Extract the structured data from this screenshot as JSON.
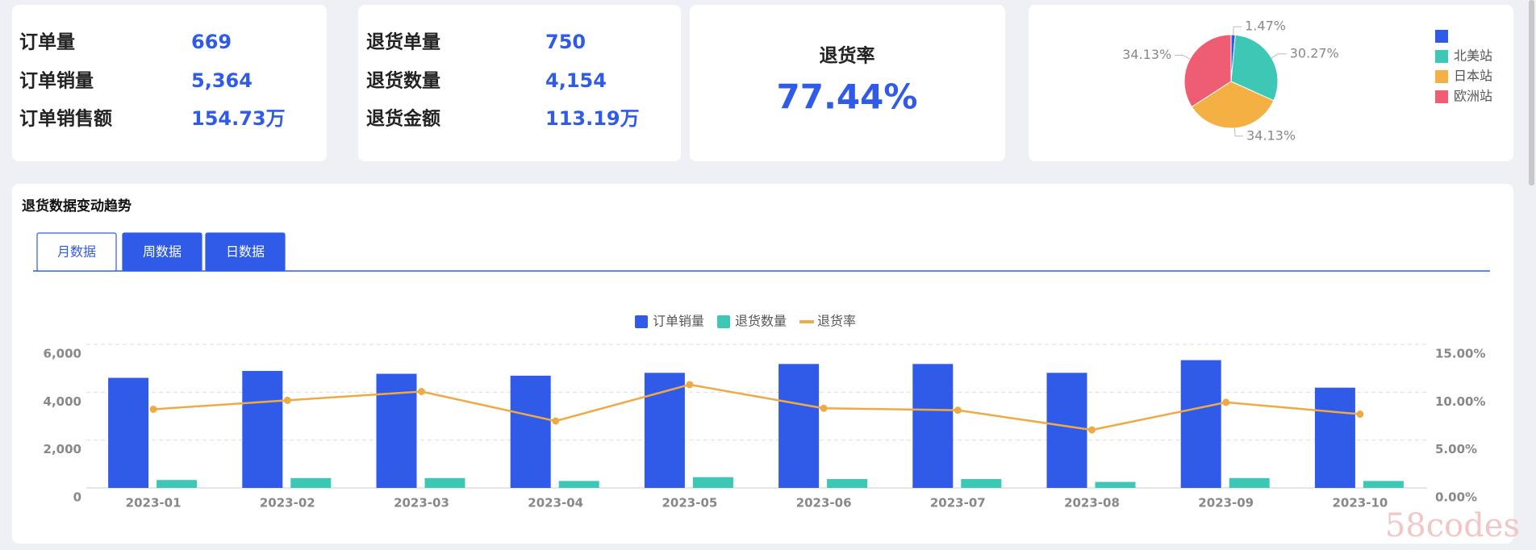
{
  "kpi_cards": [
    {
      "rows": [
        {
          "label": "订单量",
          "value": "669"
        },
        {
          "label": "订单销量",
          "value": "5,364"
        },
        {
          "label": "订单销售额",
          "value": "154.73万"
        }
      ]
    },
    {
      "rows": [
        {
          "label": "退货单量",
          "value": "750"
        },
        {
          "label": "退货数量",
          "value": "4,154"
        },
        {
          "label": "退货金额",
          "value": "113.19万"
        }
      ]
    }
  ],
  "rate_card": {
    "label": "退货率",
    "value": "77.44%"
  },
  "tabs": [
    "月数据",
    "周数据",
    "日数据"
  ],
  "watermark": "58codes",
  "chart_data": [
    {
      "type": "pie",
      "categories": [
        null,
        "北美站",
        "日本站",
        "欧洲站"
      ],
      "values": [
        1.47,
        30.27,
        34.13,
        34.13
      ],
      "value_labels": [
        "1.47%",
        "30.27%",
        "34.13%",
        "34.13%"
      ],
      "colors": [
        "#2f5be8",
        "#3cc8b4",
        "#f4b042",
        "#ef5d72"
      ],
      "legend": "right"
    },
    {
      "type": "combo",
      "title": "退货数据变动趋势",
      "categories": [
        "2023-01",
        "2023-02",
        "2023-03",
        "2023-04",
        "2023-05",
        "2023-06",
        "2023-07",
        "2023-08",
        "2023-09",
        "2023-10"
      ],
      "series": [
        {
          "name": "订单销量",
          "type": "bar",
          "color": "#2f5be8",
          "values": [
            4600,
            4890,
            4770,
            4690,
            4810,
            5180,
            5180,
            4810,
            5340,
            4190
          ]
        },
        {
          "name": "退货数量",
          "type": "bar",
          "color": "#3cc8b4",
          "values": [
            330,
            410,
            410,
            290,
            450,
            370,
            370,
            250,
            410,
            290
          ]
        },
        {
          "name": "退货率",
          "type": "line",
          "color": "#eeaa45",
          "axis": "y2",
          "values": [
            8.22,
            9.15,
            10.07,
            6.99,
            10.79,
            8.32,
            8.12,
            6.06,
            8.94,
            7.71
          ]
        }
      ],
      "ylim": [
        0,
        6000
      ],
      "yticks": [
        0,
        {
          "value": 2000,
          "label": "2,000"
        },
        {
          "value": 4000,
          "label": "4,000"
        },
        {
          "value": 6000,
          "label": "6,000"
        }
      ],
      "y2lim": [
        0,
        15
      ],
      "y2ticks": [
        {
          "value": 0,
          "label": "0.00%"
        },
        {
          "value": 5,
          "label": "5.00%"
        },
        {
          "value": 10,
          "label": "10.00%"
        },
        {
          "value": 15,
          "label": "15.00%"
        }
      ],
      "grid": true,
      "legend": "top"
    }
  ]
}
